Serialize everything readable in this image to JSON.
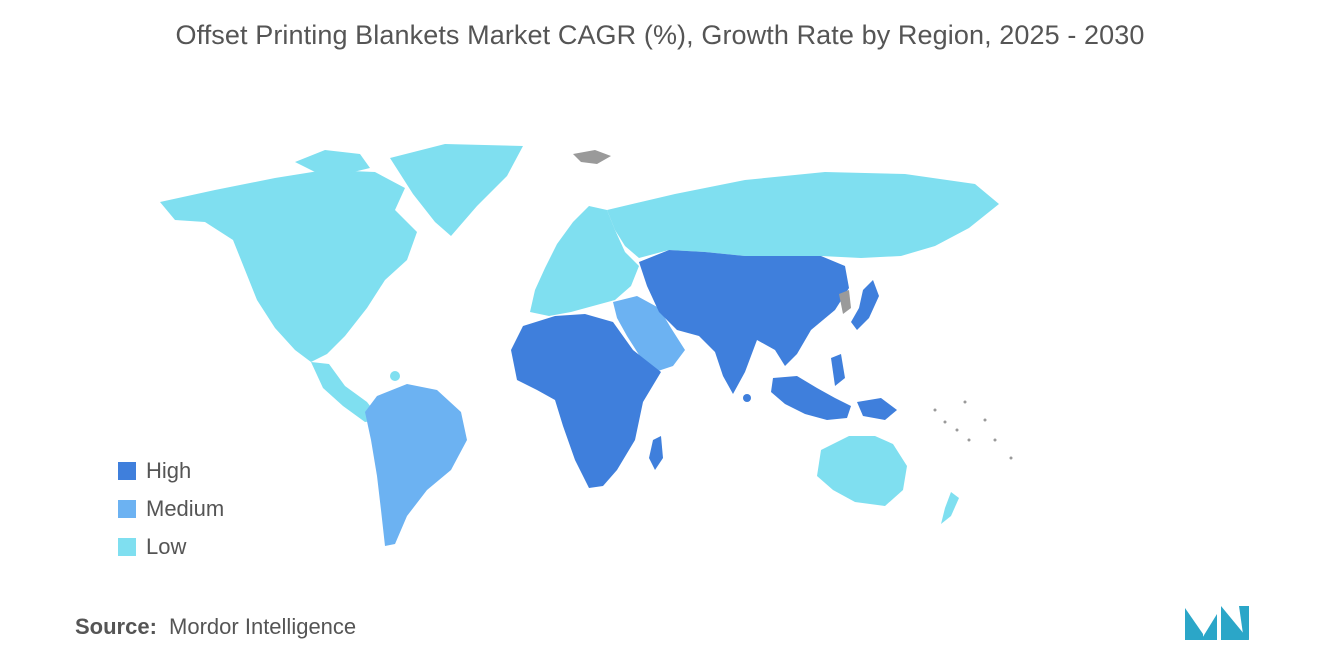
{
  "title": "Offset Printing Blankets Market CAGR (%), Growth Rate by Region, 2025 - 2030",
  "legend": [
    {
      "label": "High",
      "color": "#3f7fdc"
    },
    {
      "label": "Medium",
      "color": "#6cb2f2"
    },
    {
      "label": "Low",
      "color": "#7fdff0"
    }
  ],
  "colors": {
    "high": "#3f7fdc",
    "medium": "#6cb2f2",
    "low": "#7fdff0",
    "no_data": "#9a9a9a",
    "logo": "#2ba6c8"
  },
  "regions": [
    {
      "name": "North America",
      "level": "Low"
    },
    {
      "name": "Greenland",
      "level": "Low"
    },
    {
      "name": "Central America",
      "level": "Low"
    },
    {
      "name": "South America",
      "level": "Medium"
    },
    {
      "name": "Europe",
      "level": "Low"
    },
    {
      "name": "Russia",
      "level": "Low"
    },
    {
      "name": "Middle East",
      "level": "Medium"
    },
    {
      "name": "Africa",
      "level": "High"
    },
    {
      "name": "Asia",
      "level": "High"
    },
    {
      "name": "Southeast Asia",
      "level": "High"
    },
    {
      "name": "Japan",
      "level": "High"
    },
    {
      "name": "Australia",
      "level": "Low"
    },
    {
      "name": "New Zealand",
      "level": "Low"
    }
  ],
  "source": {
    "label": "Source:",
    "value": "Mordor Intelligence"
  },
  "logo_icon": "mordor-intelligence-logo"
}
